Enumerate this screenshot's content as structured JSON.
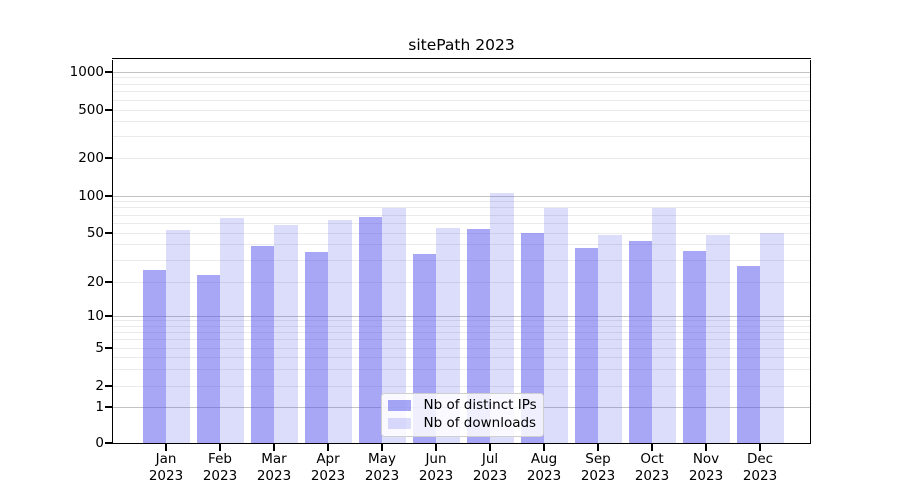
{
  "figure": {
    "title": "sitePath 2023"
  },
  "chart_data": {
    "type": "bar",
    "title": "sitePath 2023",
    "categories": [
      "Jan 2023",
      "Feb 2023",
      "Mar 2023",
      "Apr 2023",
      "May 2023",
      "Jun 2023",
      "Jul 2023",
      "Aug 2023",
      "Sep 2023",
      "Oct 2023",
      "Nov 2023",
      "Dec 2023"
    ],
    "series": [
      {
        "name": "Nb of distinct IPs",
        "color": "#a7a7f5",
        "fill": "rgba(80,80,235,0.5)",
        "values": [
          25,
          23,
          39,
          35,
          67,
          34,
          54,
          50,
          38,
          43,
          36,
          27
        ]
      },
      {
        "name": "Nb of downloads",
        "color": "#dcdcfb",
        "fill": "rgba(80,80,235,0.2)",
        "values": [
          53,
          66,
          58,
          64,
          80,
          55,
          105,
          80,
          48,
          80,
          48,
          50
        ]
      }
    ],
    "xlabel": "",
    "ylabel": "",
    "yscale": "log-like with 0 baseline",
    "y_ticks": [
      1000,
      500,
      200,
      100,
      50,
      20,
      10,
      5,
      2,
      1,
      0
    ],
    "ylim": [
      0,
      1300
    ],
    "grid": true,
    "legend_position": "lower center, inside plot"
  }
}
